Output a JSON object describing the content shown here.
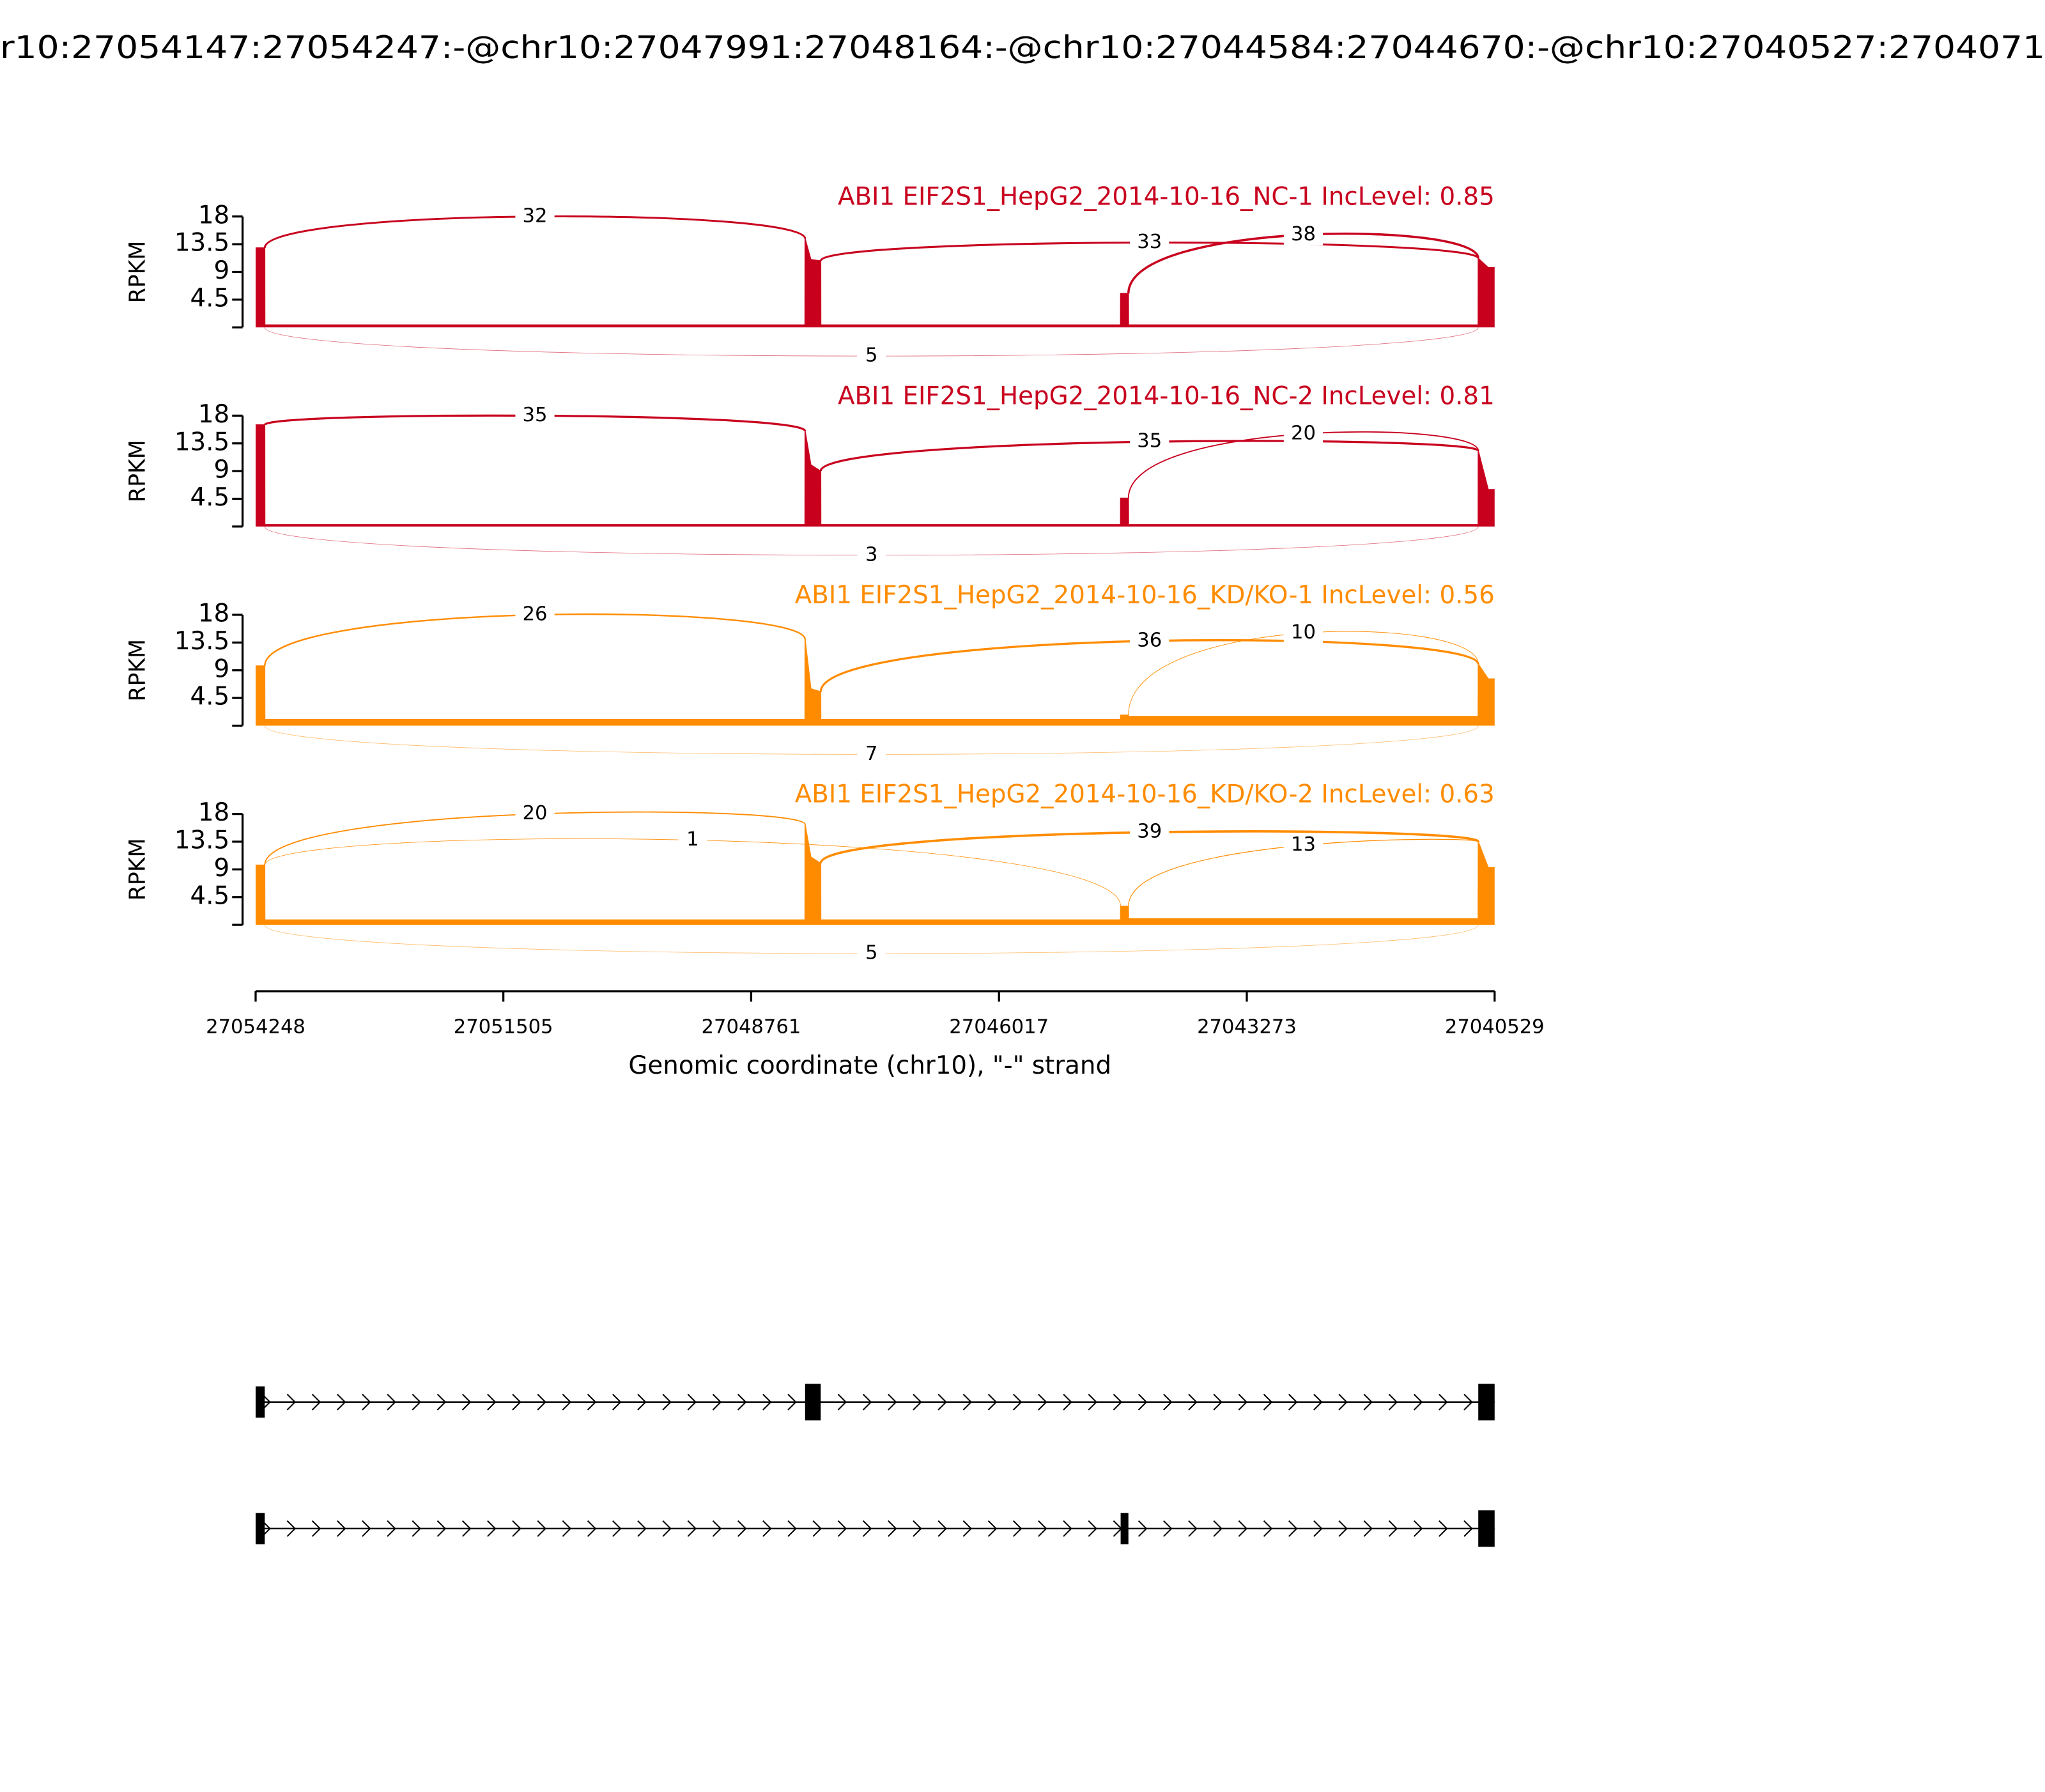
{
  "chart_data": {
    "type": "sashimi",
    "title": "r10:27054147:27054247:-@chr10:27047991:27048164:-@chr10:27044584:27044670:-@chr10:27040527:2704071",
    "xlabel": "Genomic coordinate (chr10), \"-\" strand",
    "ylabel": "RPKM",
    "xlim": [
      27054248,
      27040529
    ],
    "xticks": [
      27054248,
      27051505,
      27048761,
      27046017,
      27043273,
      27040529
    ],
    "ylim": [
      0,
      18
    ],
    "yticks": [
      4.5,
      9,
      13.5,
      18
    ],
    "x": [
      27054248,
      27054147,
      27054146,
      27048165,
      27048164,
      27048100,
      27047991,
      27047990,
      27044671,
      27044670,
      27044584,
      27044583,
      27040711,
      27040710,
      27040600,
      27040529
    ],
    "series": [
      {
        "name": "ABI1 EIF2S1_HepG2_2014-10-16_NC-1 IncLevel: 0.85",
        "color": "#c8001e",
        "values": [
          12.9,
          12.9,
          0.4,
          0.4,
          14.4,
          11,
          10.8,
          0.4,
          0.4,
          5.5,
          5.5,
          0.4,
          0.4,
          11.2,
          9.7,
          9.7
        ],
        "junctions": [
          {
            "start": 27054147,
            "end": 27048164,
            "count": 32,
            "side": "above"
          },
          {
            "start": 27047991,
            "end": 27040710,
            "count": 33,
            "side": "above"
          },
          {
            "start": 27044584,
            "end": 27040710,
            "count": 38,
            "side": "above"
          },
          {
            "start": 27054147,
            "end": 27040710,
            "count": 5,
            "side": "below"
          }
        ]
      },
      {
        "name": "ABI1 EIF2S1_HepG2_2014-10-16_NC-2 IncLevel: 0.81",
        "color": "#c8001e",
        "values": [
          16.5,
          16.5,
          0.3,
          0.3,
          15.5,
          10,
          9,
          0.3,
          0.3,
          4.6,
          4.6,
          0.3,
          0.3,
          12.3,
          6,
          6
        ],
        "junctions": [
          {
            "start": 27054147,
            "end": 27048164,
            "count": 35,
            "side": "above"
          },
          {
            "start": 27047991,
            "end": 27040710,
            "count": 35,
            "side": "above"
          },
          {
            "start": 27044584,
            "end": 27040710,
            "count": 20,
            "side": "above"
          },
          {
            "start": 27054147,
            "end": 27040710,
            "count": 3,
            "side": "below"
          }
        ]
      },
      {
        "name": "ABI1 EIF2S1_HepG2_2014-10-16_KD/KO-1 IncLevel: 0.56",
        "color": "#ff8c00",
        "values": [
          9.7,
          9.7,
          1,
          1,
          14,
          6,
          5.5,
          1,
          1,
          1.7,
          1.7,
          1.5,
          1.5,
          10,
          7.6,
          7.6
        ],
        "junctions": [
          {
            "start": 27054147,
            "end": 27048164,
            "count": 26,
            "side": "above"
          },
          {
            "start": 27047991,
            "end": 27040710,
            "count": 36,
            "side": "above"
          },
          {
            "start": 27044584,
            "end": 27040710,
            "count": 10,
            "side": "above"
          },
          {
            "start": 27054147,
            "end": 27040710,
            "count": 7,
            "side": "below"
          }
        ]
      },
      {
        "name": "ABI1 EIF2S1_HepG2_2014-10-16_KD/KO-2 IncLevel: 0.63",
        "color": "#ff8c00",
        "values": [
          9.7,
          9.7,
          0.8,
          0.8,
          16.3,
          11,
          10,
          0.8,
          0.8,
          3,
          3,
          1,
          1,
          13.5,
          9.3,
          9.3
        ],
        "junctions": [
          {
            "start": 27054147,
            "end": 27048164,
            "count": 20,
            "side": "above"
          },
          {
            "start": 27054147,
            "end": 27044670,
            "count": 1,
            "side": "above"
          },
          {
            "start": 27047991,
            "end": 27040710,
            "count": 39,
            "side": "above"
          },
          {
            "start": 27044584,
            "end": 27040710,
            "count": 13,
            "side": "above"
          },
          {
            "start": 27054147,
            "end": 27040710,
            "count": 5,
            "side": "below"
          }
        ]
      }
    ],
    "transcripts": [
      {
        "exons": [
          [
            27054248,
            27054147
          ],
          [
            27048164,
            27047991
          ],
          [
            27040710,
            27040529
          ]
        ]
      },
      {
        "exons": [
          [
            27054248,
            27054147
          ],
          [
            27044670,
            27044584
          ],
          [
            27040710,
            27040529
          ]
        ]
      }
    ]
  }
}
